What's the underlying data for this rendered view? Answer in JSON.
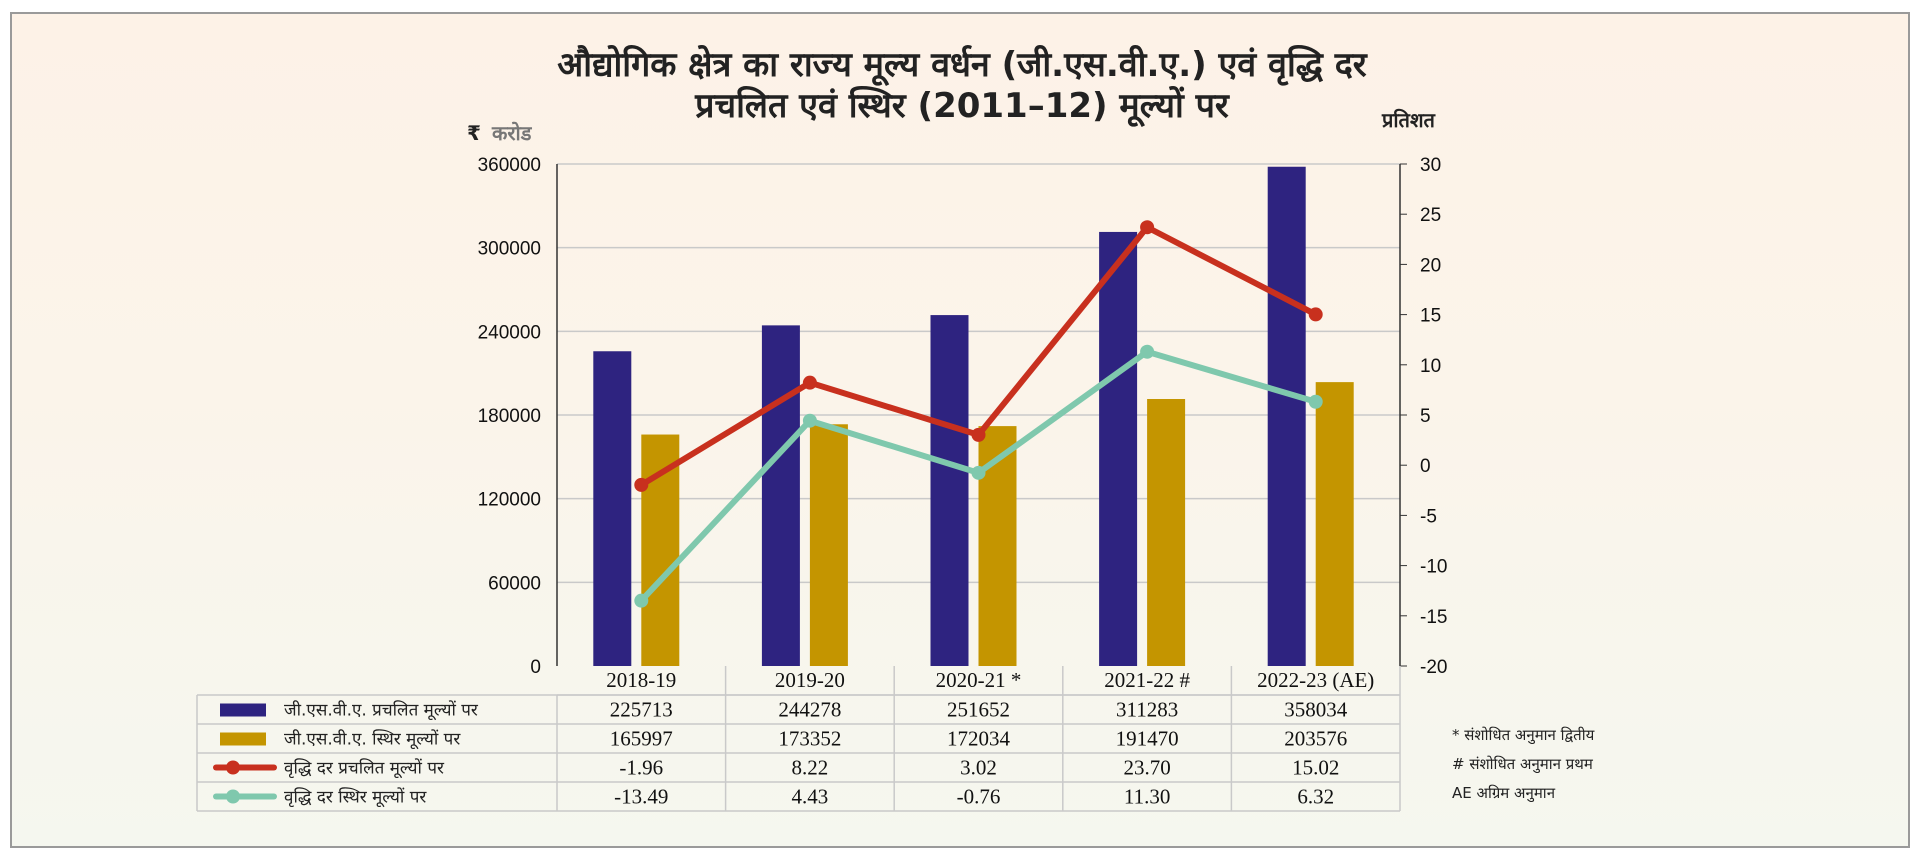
{
  "chart_data": {
    "type": "bar",
    "title": [
      "औद्योगिक क्षेत्र का राज्य मूल्य वर्धन (जी.एस.वी.ए.) एवं वृद्धि दर",
      "प्रचलित एवं स्थिर (2011–12) मूल्यों पर"
    ],
    "left_axis": {
      "unit_symbol": "₹",
      "unit_label": "करोड",
      "ylim": [
        0,
        360000
      ],
      "ticks": [
        "0",
        "60000",
        "120000",
        "180000",
        "240000",
        "300000",
        "360000"
      ]
    },
    "right_axis": {
      "unit_label": "प्रतिशत",
      "ylim": [
        -20,
        30
      ],
      "ticks": [
        "-20",
        "-15",
        "-10",
        "-5",
        "0",
        "5",
        "10",
        "15",
        "20",
        "25",
        "30"
      ]
    },
    "grid": true,
    "categories": [
      "2018-19",
      "2019-20",
      "2020-21 *",
      "2021-22 #",
      "2022-23 (AE)"
    ],
    "series": [
      {
        "name": "जी.एस.वी.ए. प्रचलित मूल्यों पर",
        "type": "bar",
        "axis": "left",
        "color": "#2e2380",
        "values": [
          225713,
          244278,
          251652,
          311283,
          358034
        ],
        "labels": [
          "225713",
          "244278",
          "251652",
          "311283",
          "358034"
        ]
      },
      {
        "name": "जी.एस.वी.ए. स्थिर मूल्यों पर",
        "type": "bar",
        "axis": "left",
        "color": "#c49500",
        "values": [
          165997,
          173352,
          172034,
          191470,
          203576
        ],
        "labels": [
          "165997",
          "173352",
          "172034",
          "191470",
          "203576"
        ]
      },
      {
        "name": "वृद्धि दर प्रचलित मूल्यों पर",
        "type": "line",
        "axis": "right",
        "color": "#c8301e",
        "values": [
          -1.96,
          8.22,
          3.02,
          23.7,
          15.02
        ],
        "labels": [
          "-1.96",
          "8.22",
          "3.02",
          "23.70",
          "15.02"
        ]
      },
      {
        "name": "वृद्धि दर स्थिर मूल्यों पर",
        "type": "line",
        "axis": "right",
        "color": "#7fc8ad",
        "values": [
          -13.49,
          4.43,
          -0.76,
          11.3,
          6.32
        ],
        "labels": [
          "-13.49",
          "4.43",
          "-0.76",
          "11.30",
          "6.32"
        ]
      }
    ],
    "notes": [
      "* संशोधित अनुमान द्वितीय",
      "# संशोधित अनुमान प्रथम",
      "AE अग्रिम अनुमान"
    ]
  }
}
